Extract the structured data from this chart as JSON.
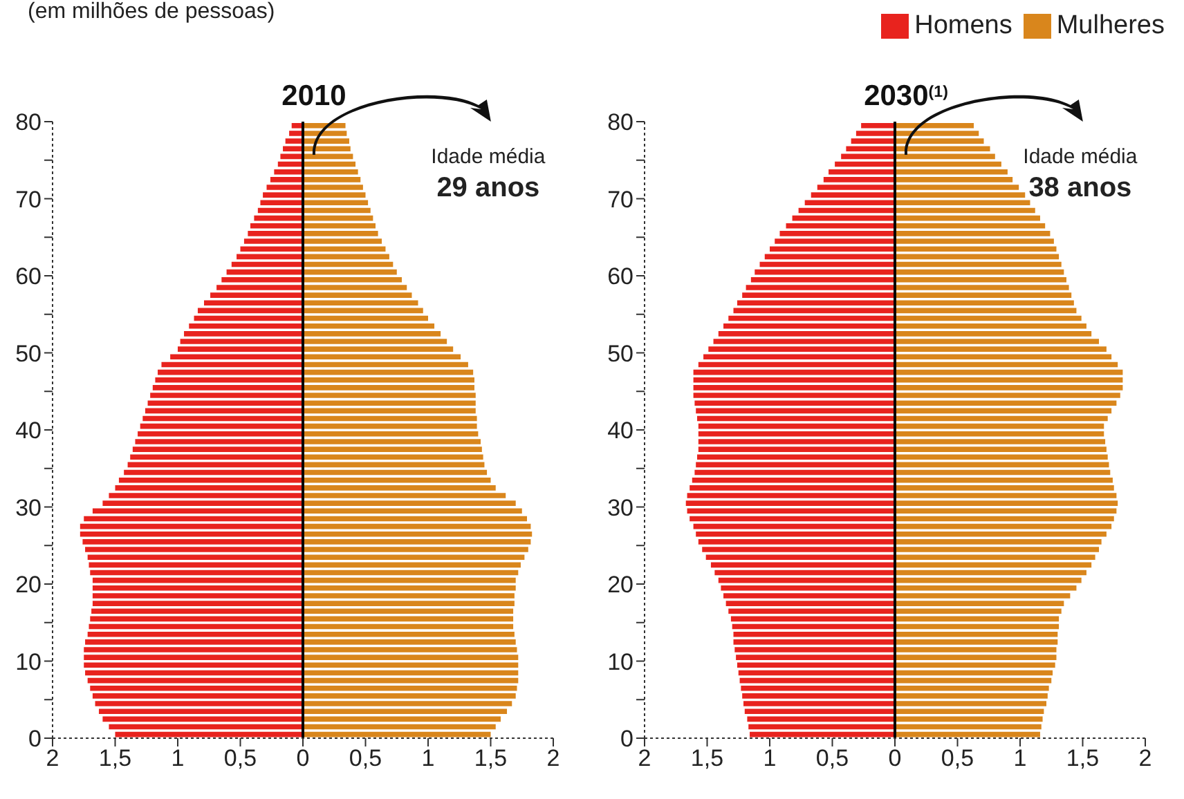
{
  "chart_data": [
    {
      "type": "bar",
      "orientation": "horizontal",
      "stacked": true,
      "title": "2010",
      "subtitle": "(em milhões de pessoas)",
      "annotations": [
        "Idade média",
        "29 anos"
      ],
      "x": [
        0.5,
        1.5,
        2.5,
        3.5,
        4.5,
        5.5,
        6.5,
        7.5,
        8.5,
        9.5,
        10.5,
        11.5,
        12.5,
        13.5,
        14.5,
        15.5,
        16.5,
        17.5,
        18.5,
        19.5,
        20.5,
        21.5,
        22.5,
        23.5,
        24.5,
        25.5,
        26.5,
        27.5,
        28.5,
        29.5,
        30.5,
        31.5,
        32.5,
        33.5,
        34.5,
        35.5,
        36.5,
        37.5,
        38.5,
        39.5,
        40.5,
        41.5,
        42.5,
        43.5,
        44.5,
        45.5,
        46.5,
        47.5,
        48.5,
        49.5,
        50.5,
        51.5,
        52.5,
        53.5,
        54.5,
        55.5,
        56.5,
        57.5,
        58.5,
        59.5,
        60.5,
        61.5,
        62.5,
        63.5,
        64.5,
        65.5,
        66.5,
        67.5,
        68.5,
        69.5,
        70.5,
        71.5,
        72.5,
        73.5,
        74.5,
        75.5,
        76.5,
        77.5,
        78.5,
        79.5
      ],
      "series": [
        {
          "color": "#e8231e",
          "values": [
            -1.5,
            -1.55,
            -1.6,
            -1.63,
            -1.66,
            -1.68,
            -1.7,
            -1.72,
            -1.74,
            -1.75,
            -1.75,
            -1.75,
            -1.74,
            -1.72,
            -1.71,
            -1.7,
            -1.69,
            -1.68,
            -1.68,
            -1.68,
            -1.68,
            -1.7,
            -1.71,
            -1.72,
            -1.74,
            -1.76,
            -1.78,
            -1.78,
            -1.75,
            -1.68,
            -1.6,
            -1.55,
            -1.5,
            -1.47,
            -1.43,
            -1.4,
            -1.38,
            -1.36,
            -1.34,
            -1.32,
            -1.3,
            -1.28,
            -1.26,
            -1.24,
            -1.22,
            -1.2,
            -1.18,
            -1.16,
            -1.13,
            -1.06,
            -1.0,
            -0.98,
            -0.95,
            -0.91,
            -0.87,
            -0.84,
            -0.79,
            -0.74,
            -0.69,
            -0.65,
            -0.61,
            -0.57,
            -0.53,
            -0.5,
            -0.47,
            -0.44,
            -0.42,
            -0.39,
            -0.36,
            -0.34,
            -0.32,
            -0.29,
            -0.26,
            -0.23,
            -0.2,
            -0.18,
            -0.16,
            -0.14,
            -0.11,
            -0.09
          ]
        },
        {
          "color": "#d9861c",
          "values": [
            1.5,
            1.54,
            1.58,
            1.63,
            1.67,
            1.7,
            1.71,
            1.72,
            1.72,
            1.72,
            1.72,
            1.71,
            1.7,
            1.69,
            1.68,
            1.68,
            1.68,
            1.69,
            1.69,
            1.7,
            1.7,
            1.72,
            1.74,
            1.77,
            1.8,
            1.82,
            1.83,
            1.82,
            1.79,
            1.75,
            1.7,
            1.62,
            1.54,
            1.5,
            1.47,
            1.45,
            1.44,
            1.43,
            1.42,
            1.4,
            1.39,
            1.39,
            1.38,
            1.38,
            1.38,
            1.37,
            1.37,
            1.36,
            1.32,
            1.26,
            1.2,
            1.15,
            1.1,
            1.05,
            1.0,
            0.96,
            0.92,
            0.87,
            0.83,
            0.79,
            0.75,
            0.72,
            0.69,
            0.66,
            0.63,
            0.6,
            0.58,
            0.56,
            0.54,
            0.52,
            0.5,
            0.48,
            0.46,
            0.44,
            0.42,
            0.4,
            0.38,
            0.37,
            0.35,
            0.34
          ]
        }
      ],
      "xlim": [
        -2,
        2
      ],
      "xticks": [
        {
          "value": -2,
          "label": "2"
        },
        {
          "value": -1.5,
          "label": "1,5"
        },
        {
          "value": -1,
          "label": "1"
        },
        {
          "value": -0.5,
          "label": "0,5"
        },
        0,
        {
          "value": 0.5,
          "label": "0,5"
        },
        1,
        {
          "value": 1.5,
          "label": "1,5"
        },
        2
      ],
      "ylim": [
        0,
        80
      ],
      "yticks": [
        0,
        {
          "value": 5,
          "label": null
        },
        10,
        {
          "value": 15,
          "label": null
        },
        20,
        {
          "value": 25,
          "label": null
        },
        30,
        {
          "value": 35,
          "label": null
        },
        40,
        {
          "value": 45,
          "label": null
        },
        50,
        {
          "value": 55,
          "label": null
        },
        60,
        {
          "value": 65,
          "label": null
        },
        70,
        {
          "value": 75,
          "label": null
        },
        80
      ],
      "ref_lines": [
        {
          "axis": "x",
          "value": 0,
          "color": "#000000"
        }
      ]
    },
    {
      "type": "bar",
      "orientation": "horizontal",
      "stacked": true,
      "title": "2030$^{(1)}$",
      "annotations": [
        "Idade média",
        "38 anos"
      ],
      "legend": "top right",
      "x": [
        0.5,
        1.5,
        2.5,
        3.5,
        4.5,
        5.5,
        6.5,
        7.5,
        8.5,
        9.5,
        10.5,
        11.5,
        12.5,
        13.5,
        14.5,
        15.5,
        16.5,
        17.5,
        18.5,
        19.5,
        20.5,
        21.5,
        22.5,
        23.5,
        24.5,
        25.5,
        26.5,
        27.5,
        28.5,
        29.5,
        30.5,
        31.5,
        32.5,
        33.5,
        34.5,
        35.5,
        36.5,
        37.5,
        38.5,
        39.5,
        40.5,
        41.5,
        42.5,
        43.5,
        44.5,
        45.5,
        46.5,
        47.5,
        48.5,
        49.5,
        50.5,
        51.5,
        52.5,
        53.5,
        54.5,
        55.5,
        56.5,
        57.5,
        58.5,
        59.5,
        60.5,
        61.5,
        62.5,
        63.5,
        64.5,
        65.5,
        66.5,
        67.5,
        68.5,
        69.5,
        70.5,
        71.5,
        72.5,
        73.5,
        74.5,
        75.5,
        76.5,
        77.5,
        78.5,
        79.5
      ],
      "series": [
        {
          "name": "Homens",
          "color": "#e8231e",
          "values": [
            -1.16,
            -1.17,
            -1.18,
            -1.2,
            -1.21,
            -1.22,
            -1.23,
            -1.24,
            -1.25,
            -1.26,
            -1.27,
            -1.28,
            -1.29,
            -1.29,
            -1.3,
            -1.31,
            -1.33,
            -1.35,
            -1.37,
            -1.39,
            -1.41,
            -1.44,
            -1.47,
            -1.51,
            -1.54,
            -1.57,
            -1.59,
            -1.61,
            -1.64,
            -1.66,
            -1.67,
            -1.66,
            -1.64,
            -1.62,
            -1.6,
            -1.59,
            -1.58,
            -1.57,
            -1.57,
            -1.57,
            -1.57,
            -1.58,
            -1.59,
            -1.6,
            -1.61,
            -1.61,
            -1.61,
            -1.61,
            -1.57,
            -1.53,
            -1.49,
            -1.45,
            -1.41,
            -1.37,
            -1.33,
            -1.29,
            -1.26,
            -1.22,
            -1.19,
            -1.15,
            -1.12,
            -1.08,
            -1.04,
            -1.0,
            -0.96,
            -0.92,
            -0.87,
            -0.82,
            -0.77,
            -0.72,
            -0.67,
            -0.62,
            -0.57,
            -0.53,
            -0.48,
            -0.43,
            -0.39,
            -0.35,
            -0.31,
            -0.27
          ]
        },
        {
          "name": "Mulheres",
          "color": "#d9861c",
          "values": [
            1.16,
            1.17,
            1.18,
            1.19,
            1.21,
            1.22,
            1.23,
            1.25,
            1.26,
            1.28,
            1.29,
            1.29,
            1.3,
            1.3,
            1.31,
            1.31,
            1.33,
            1.35,
            1.4,
            1.45,
            1.49,
            1.53,
            1.57,
            1.6,
            1.63,
            1.65,
            1.69,
            1.73,
            1.75,
            1.77,
            1.78,
            1.77,
            1.75,
            1.74,
            1.72,
            1.71,
            1.7,
            1.69,
            1.68,
            1.67,
            1.67,
            1.7,
            1.73,
            1.77,
            1.8,
            1.82,
            1.82,
            1.82,
            1.78,
            1.73,
            1.69,
            1.63,
            1.57,
            1.53,
            1.49,
            1.45,
            1.43,
            1.41,
            1.39,
            1.37,
            1.35,
            1.33,
            1.31,
            1.29,
            1.27,
            1.24,
            1.2,
            1.16,
            1.12,
            1.08,
            1.04,
            0.99,
            0.94,
            0.9,
            0.85,
            0.8,
            0.76,
            0.71,
            0.67,
            0.63
          ]
        }
      ],
      "xlim": [
        -2,
        2
      ],
      "xticks": [
        {
          "value": -2,
          "label": "2"
        },
        {
          "value": -1.5,
          "label": "1,5"
        },
        {
          "value": -1,
          "label": "1"
        },
        {
          "value": -0.5,
          "label": "0,5"
        },
        0,
        {
          "value": 0.5,
          "label": "0,5"
        },
        1,
        {
          "value": 1.5,
          "label": "1,5"
        },
        2
      ],
      "ylim": [
        0,
        80
      ],
      "yticks": [
        0,
        {
          "value": 5,
          "label": null
        },
        10,
        {
          "value": 15,
          "label": null
        },
        20,
        {
          "value": 25,
          "label": null
        },
        30,
        {
          "value": 35,
          "label": null
        },
        40,
        {
          "value": 45,
          "label": null
        },
        50,
        {
          "value": 55,
          "label": null
        },
        60,
        {
          "value": 65,
          "label": null
        },
        70,
        {
          "value": 75,
          "label": null
        },
        80
      ],
      "ref_lines": [
        {
          "axis": "x",
          "value": 0,
          "color": "#000000"
        }
      ]
    }
  ]
}
